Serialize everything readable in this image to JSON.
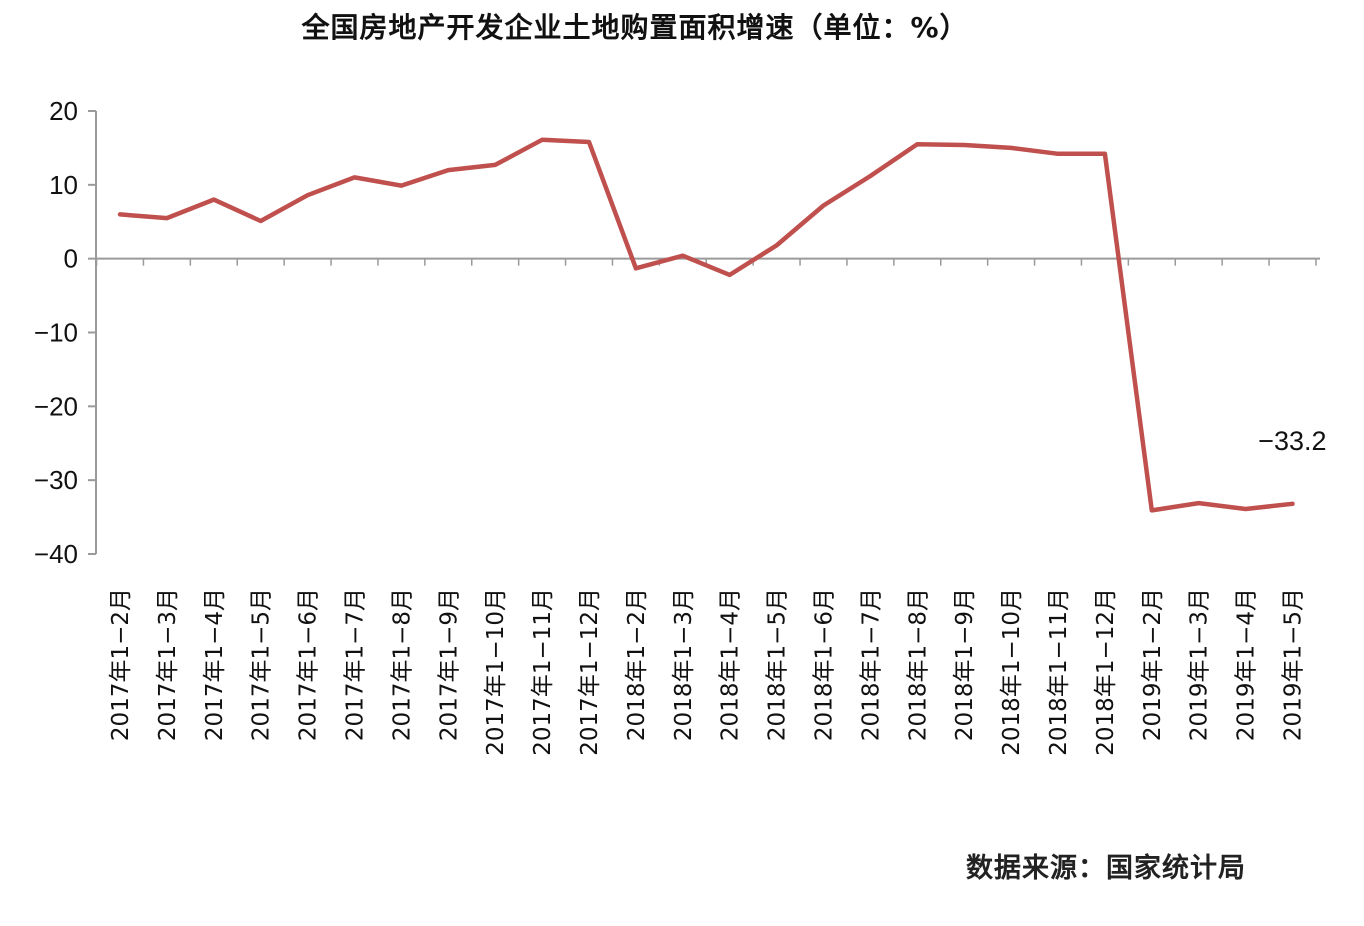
{
  "chart_data": {
    "type": "line",
    "title": "全国房地产开发企业土地购置面积增速（单位：%）",
    "xlabel": "",
    "ylabel": "",
    "ylim": [
      -40,
      20
    ],
    "yticks": [
      20,
      10,
      0,
      -10,
      -20,
      -30,
      -40
    ],
    "ytick_labels": [
      "20",
      "10",
      "0",
      "−10",
      "−20",
      "−30",
      "−40"
    ],
    "grid": false,
    "legend": "none",
    "categories": [
      "2017年1−2月",
      "2017年1−3月",
      "2017年1−4月",
      "2017年1−5月",
      "2017年1−6月",
      "2017年1−7月",
      "2017年1−8月",
      "2017年1−9月",
      "2017年1−10月",
      "2017年1−11月",
      "2017年1−12月",
      "2018年1−2月",
      "2018年1−3月",
      "2018年1−4月",
      "2018年1−5月",
      "2018年1−6月",
      "2018年1−7月",
      "2018年1−8月",
      "2018年1−9月",
      "2018年1−10月",
      "2018年1−11月",
      "2018年1−12月",
      "2019年1−2月",
      "2019年1−3月",
      "2019年1−4月",
      "2019年1−5月"
    ],
    "series": [
      {
        "values": [
          6.0,
          5.5,
          8.0,
          5.1,
          8.6,
          11.0,
          9.9,
          12.0,
          12.7,
          16.1,
          15.8,
          -1.3,
          0.4,
          -2.2,
          1.8,
          7.2,
          11.2,
          15.5,
          15.4,
          15.0,
          14.2,
          14.2,
          -34.1,
          -33.1,
          -33.9,
          -33.2
        ],
        "color": "#c0504d"
      }
    ],
    "annotations": [
      {
        "category_index": 25,
        "text": "−33.2"
      }
    ],
    "source": "数据来源：国家统计局"
  }
}
